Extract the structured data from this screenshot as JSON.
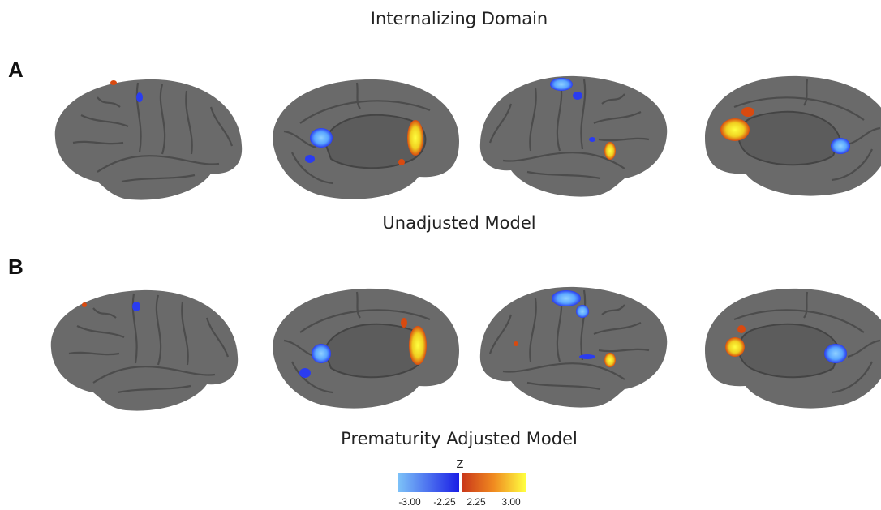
{
  "title": "Internalizing Domain",
  "panels": [
    {
      "label": "A",
      "caption": "Unadjusted Model"
    },
    {
      "label": "B",
      "caption": "Prematurity Adjusted Model"
    }
  ],
  "colorbar": {
    "label": "Z",
    "tick_labels": [
      "-3.00",
      "-2.25",
      "2.25",
      "3.00"
    ]
  }
}
